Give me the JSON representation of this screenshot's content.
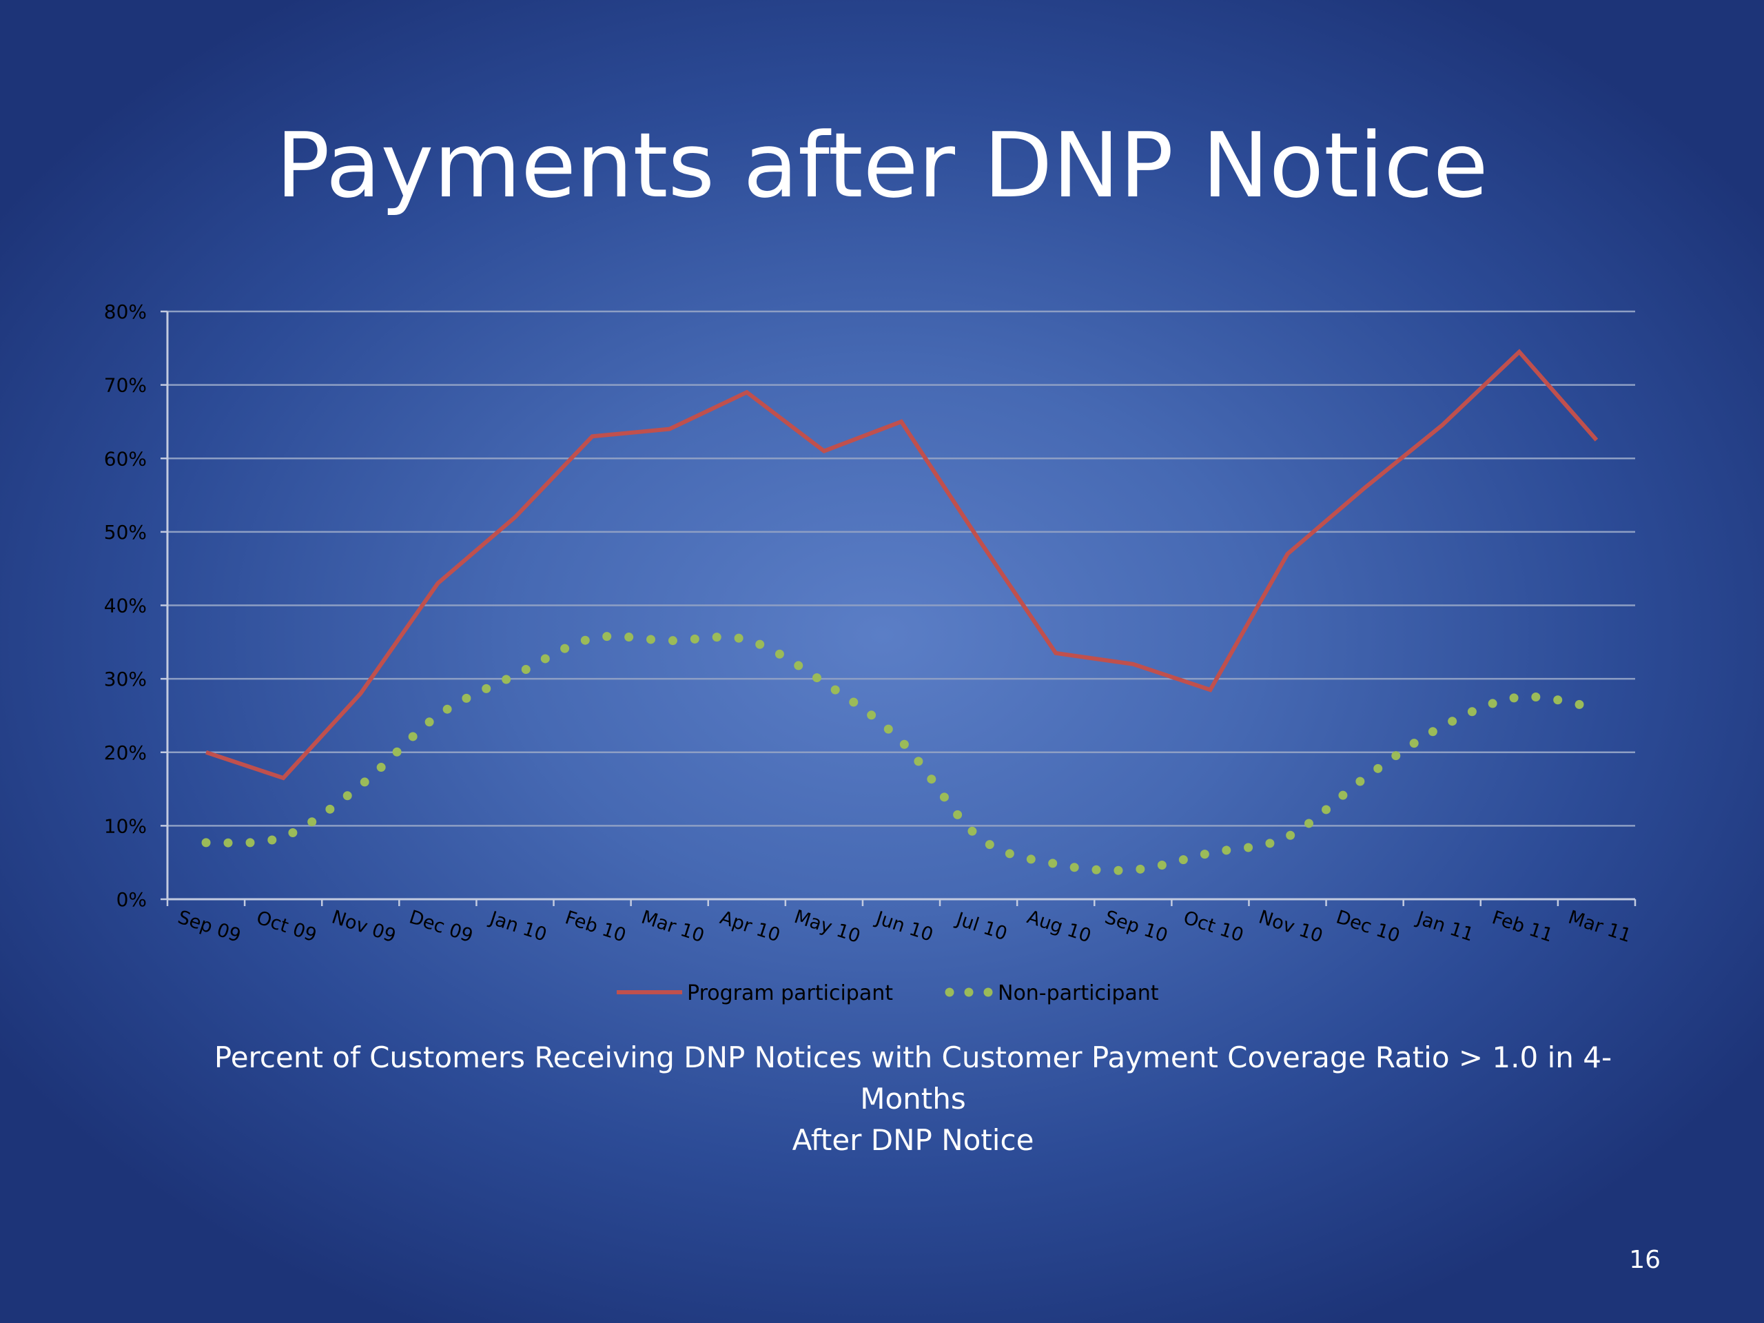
{
  "slide": {
    "title": "Payments after DNP Notice",
    "caption_line1": "Percent of Customers Receiving DNP Notices with Customer Payment Coverage Ratio > 1.0 in 4-Months",
    "caption_line2": "After DNP Notice",
    "page_number": "16"
  },
  "chart_data": {
    "type": "line",
    "title": "",
    "xlabel": "",
    "ylabel": "",
    "ylim": [
      0,
      0.8
    ],
    "y_ticks": [
      {
        "value": 0.0,
        "label": "0%"
      },
      {
        "value": 0.1,
        "label": "10%"
      },
      {
        "value": 0.2,
        "label": "20%"
      },
      {
        "value": 0.3,
        "label": "30%"
      },
      {
        "value": 0.4,
        "label": "40%"
      },
      {
        "value": 0.5,
        "label": "50%"
      },
      {
        "value": 0.6,
        "label": "60%"
      },
      {
        "value": 0.7,
        "label": "70%"
      },
      {
        "value": 0.8,
        "label": "80%"
      }
    ],
    "categories": [
      "Sep 09",
      "Oct 09",
      "Nov 09",
      "Dec 09",
      "Jan 10",
      "Feb 10",
      "Mar 10",
      "Apr 10",
      "May 10",
      "Jun 10",
      "Jul 10",
      "Aug 10",
      "Sep 10",
      "Oct 10",
      "Nov 10",
      "Dec 10",
      "Jan 11",
      "Feb 11",
      "Mar 11"
    ],
    "grid": true,
    "legend_position": "bottom",
    "series": [
      {
        "name": "Program participant",
        "style": "solid",
        "color": "#c0504d",
        "values": [
          0.2,
          0.165,
          0.28,
          0.43,
          0.52,
          0.63,
          0.64,
          0.69,
          0.61,
          0.65,
          0.49,
          0.335,
          0.32,
          0.285,
          0.47,
          0.56,
          0.645,
          0.745,
          0.625
        ]
      },
      {
        "name": "Non-participant",
        "style": "dotted",
        "color": "#9bbb59",
        "values": [
          0.077,
          0.085,
          0.155,
          0.25,
          0.305,
          0.355,
          0.352,
          0.353,
          0.295,
          0.215,
          0.085,
          0.048,
          0.04,
          0.063,
          0.085,
          0.165,
          0.235,
          0.275,
          0.26
        ]
      }
    ]
  }
}
